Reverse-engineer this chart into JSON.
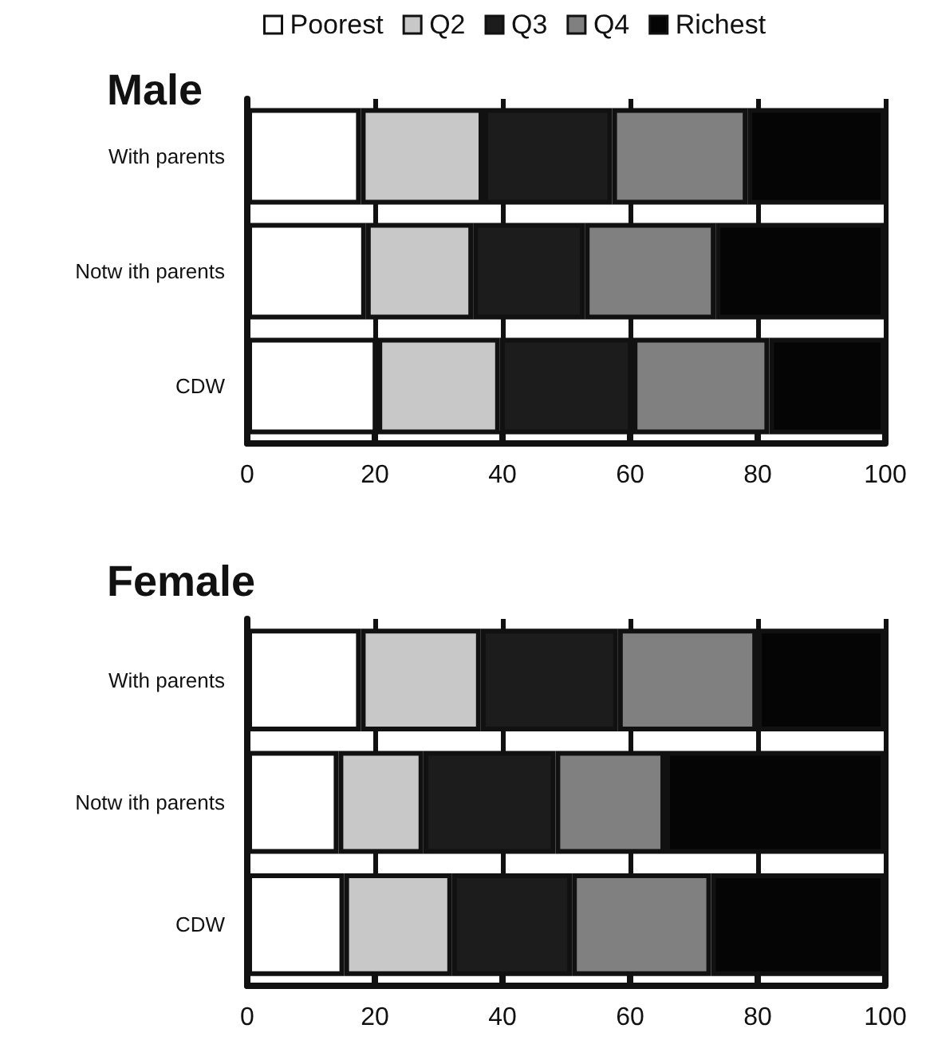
{
  "chart_data": [
    {
      "type": "bar",
      "title": "Male",
      "orientation": "horizontal",
      "stacked": true,
      "categories": [
        "With parents",
        "Notw ith parents",
        "CDW"
      ],
      "xlim": [
        0,
        100
      ],
      "xticks": [
        0,
        20,
        40,
        60,
        80,
        100
      ],
      "grid": "x",
      "legend": "top",
      "series": [
        {
          "name": "Poorest",
          "color": "#ffffff",
          "values": [
            17.8,
            18.6,
            20.4
          ]
        },
        {
          "name": "Q2",
          "color": "#c8c8c8",
          "values": [
            19.2,
            16.8,
            19.2
          ]
        },
        {
          "name": "Q3",
          "color": "#1c1c1c",
          "values": [
            20.2,
            17.5,
            20.8
          ]
        },
        {
          "name": "Q4",
          "color": "#808080",
          "values": [
            21.2,
            20.5,
            21.4
          ]
        },
        {
          "name": "Richest",
          "color": "#050505",
          "values": [
            21.6,
            26.6,
            18.2
          ]
        }
      ]
    },
    {
      "type": "bar",
      "title": "Female",
      "orientation": "horizontal",
      "stacked": true,
      "categories": [
        "With parents",
        "Notw ith parents",
        "CDW"
      ],
      "xlim": [
        0,
        100
      ],
      "xticks": [
        0,
        20,
        40,
        60,
        80,
        100
      ],
      "grid": "x",
      "series": [
        {
          "color": "#ffffff",
          "values": [
            17.8,
            14.3,
            15.2
          ]
        },
        {
          "color": "#c8c8c8",
          "values": [
            18.8,
            13.3,
            16.9
          ]
        },
        {
          "color": "#1c1c1c",
          "values": [
            21.5,
            20.7,
            18.8
          ]
        },
        {
          "color": "#808080",
          "values": [
            21.8,
            17.2,
            21.8
          ]
        },
        {
          "color": "#050505",
          "values": [
            20.1,
            34.5,
            27.3
          ]
        }
      ]
    }
  ]
}
